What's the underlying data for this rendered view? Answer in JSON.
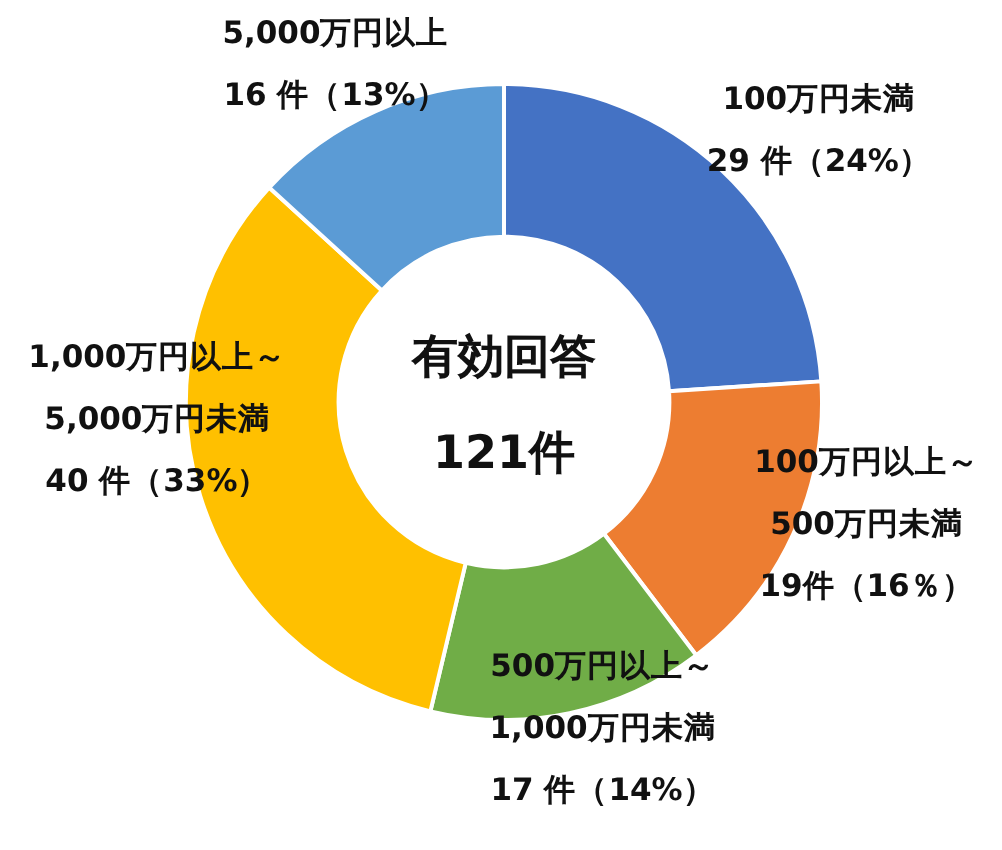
{
  "chart_data": {
    "type": "donut",
    "categories": [
      "100万円未満",
      "100万円以上～500万円未満",
      "500万円以上～1,000万円未満",
      "1,000万円以上～5,000万円未満",
      "5,000万円以上"
    ],
    "values": [
      29,
      19,
      17,
      40,
      16
    ],
    "colors": [
      "#4472c4",
      "#ed7d31",
      "#70ad47",
      "#ffc000",
      "#5b9bd5"
    ],
    "value_labels": [
      "29 件（24%）",
      "19件（16％）",
      "17 件（14%）",
      "40 件（33%）",
      "16 件（13%）"
    ],
    "annotations": [
      "有効回答",
      "121件"
    ]
  }
}
